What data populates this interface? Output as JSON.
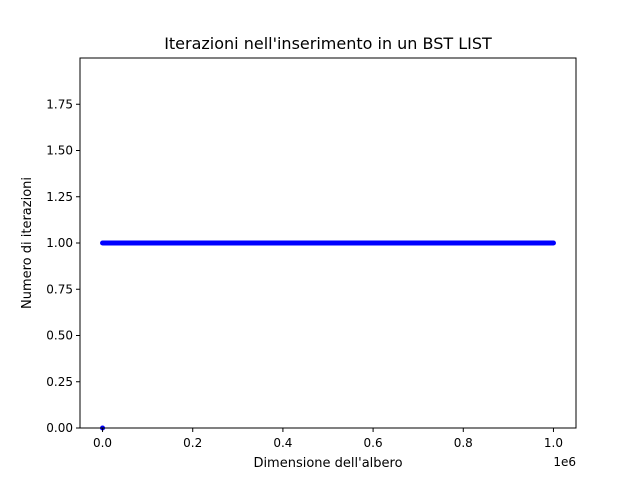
{
  "chart_data": {
    "type": "scatter",
    "title": "Iterazioni nell'inserimento in un BST LIST",
    "xlabel": "Dimensione dell'albero",
    "ylabel": "Numero di iterazioni",
    "x_scale_label": "1e6",
    "xlim": [
      -50000,
      1050000
    ],
    "ylim": [
      0,
      2
    ],
    "x_ticks": [
      {
        "value": 0,
        "label": "0.0"
      },
      {
        "value": 200000,
        "label": "0.2"
      },
      {
        "value": 400000,
        "label": "0.4"
      },
      {
        "value": 600000,
        "label": "0.6"
      },
      {
        "value": 800000,
        "label": "0.8"
      },
      {
        "value": 1000000,
        "label": "1.0"
      }
    ],
    "y_ticks": [
      {
        "value": 0.0,
        "label": "0.00"
      },
      {
        "value": 0.25,
        "label": "0.25"
      },
      {
        "value": 0.5,
        "label": "0.50"
      },
      {
        "value": 0.75,
        "label": "0.75"
      },
      {
        "value": 1.0,
        "label": "1.00"
      },
      {
        "value": 1.25,
        "label": "1.25"
      },
      {
        "value": 1.5,
        "label": "1.50"
      },
      {
        "value": 1.75,
        "label": "1.75"
      }
    ],
    "grid": false,
    "series": [
      {
        "color": "#0000ff",
        "points": [
          {
            "x": 0,
            "y": 0
          },
          {
            "x": 0,
            "y": 1
          },
          {
            "x": 100000,
            "y": 1
          },
          {
            "x": 200000,
            "y": 1
          },
          {
            "x": 300000,
            "y": 1
          },
          {
            "x": 400000,
            "y": 1
          },
          {
            "x": 500000,
            "y": 1
          },
          {
            "x": 600000,
            "y": 1
          },
          {
            "x": 700000,
            "y": 1
          },
          {
            "x": 800000,
            "y": 1
          },
          {
            "x": 900000,
            "y": 1
          },
          {
            "x": 1000000,
            "y": 1
          }
        ],
        "continuous_run": {
          "x_from": 0,
          "x_to": 1000000,
          "y": 1
        }
      }
    ]
  }
}
